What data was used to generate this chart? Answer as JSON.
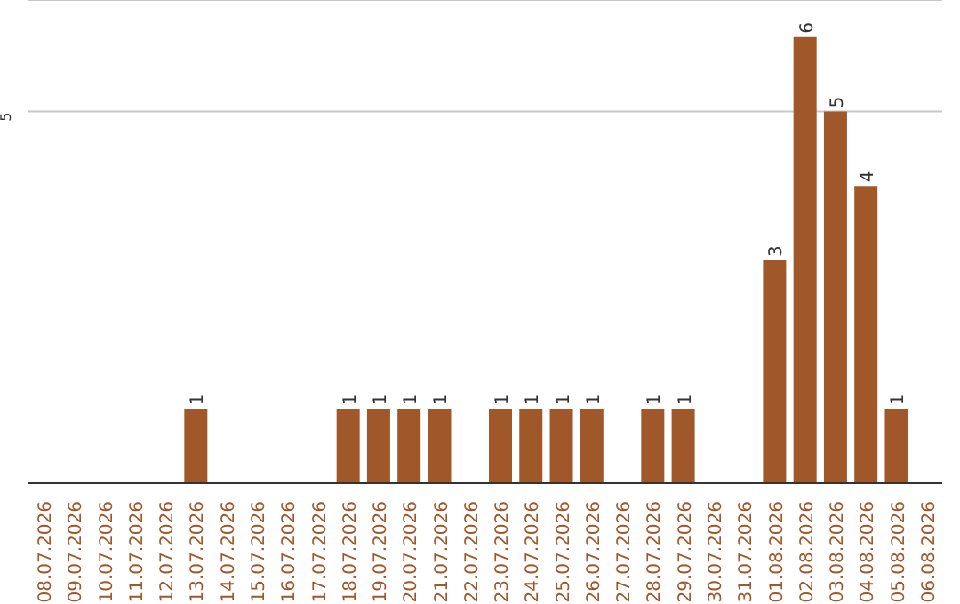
{
  "chart_data": {
    "type": "bar",
    "categories": [
      "08.07.2026",
      "09.07.2026",
      "10.07.2026",
      "11.07.2026",
      "12.07.2026",
      "13.07.2026",
      "14.07.2026",
      "15.07.2026",
      "16.07.2026",
      "17.07.2026",
      "18.07.2026",
      "19.07.2026",
      "20.07.2026",
      "21.07.2026",
      "22.07.2026",
      "23.07.2026",
      "24.07.2026",
      "25.07.2026",
      "26.07.2026",
      "27.07.2026",
      "28.07.2026",
      "29.07.2026",
      "30.07.2026",
      "31.07.2026",
      "01.08.2026",
      "02.08.2026",
      "03.08.2026",
      "04.08.2026",
      "05.08.2026",
      "06.08.2026"
    ],
    "values": [
      0,
      0,
      0,
      0,
      0,
      1,
      0,
      0,
      0,
      0,
      1,
      1,
      1,
      1,
      0,
      1,
      1,
      1,
      1,
      0,
      1,
      1,
      0,
      0,
      3,
      6,
      5,
      4,
      1,
      0
    ],
    "value_labels": [
      null,
      null,
      null,
      null,
      null,
      "1",
      null,
      null,
      null,
      null,
      "1",
      "1",
      "1",
      "1",
      null,
      "1",
      "1",
      "1",
      "1",
      null,
      "1",
      "1",
      null,
      null,
      "3",
      "6",
      "5",
      "4",
      "1",
      null
    ],
    "color": "#a0572a",
    "ylim": [
      0,
      6.5
    ],
    "yticks": [
      5
    ],
    "grid": "y",
    "legend": false
  }
}
